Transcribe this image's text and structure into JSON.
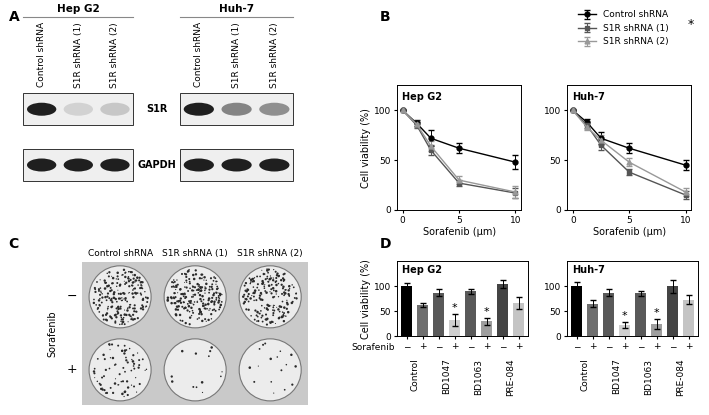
{
  "panel_labels": [
    "A",
    "B",
    "C",
    "D"
  ],
  "panel_A": {
    "rows": [
      "S1R",
      "GAPDH"
    ],
    "cell_lines": [
      {
        "name": "Hep G2",
        "lanes": [
          "Control shRNA",
          "S1R shRNA (1)",
          "S1R shRNA (2)"
        ],
        "bands": {
          "S1R": [
            1.0,
            0.2,
            0.25
          ],
          "GAPDH": [
            1.0,
            1.0,
            1.0
          ]
        }
      },
      {
        "name": "Huh-7",
        "lanes": [
          "Control shRNA",
          "S1R shRNA (1)",
          "S1R shRNA (2)"
        ],
        "bands": {
          "S1R": [
            1.0,
            0.55,
            0.5
          ],
          "GAPDH": [
            1.0,
            1.0,
            1.0
          ]
        }
      }
    ]
  },
  "panel_C": {
    "columns": [
      "Control shRNA",
      "S1R shRNA (1)",
      "S1R shRNA (2)"
    ],
    "row_title": "Sorafenib",
    "rows": [
      "−",
      "+"
    ],
    "colony_density": [
      [
        1.0,
        1.0,
        0.9
      ],
      [
        0.35,
        0.06,
        0.08
      ]
    ]
  },
  "chart_data": [
    {
      "type": "line",
      "title": "Hep G2",
      "x": [
        0,
        1.25,
        2.5,
        5,
        10
      ],
      "xlim": [
        -0.5,
        10.5
      ],
      "xticks": [
        0,
        5,
        10
      ],
      "ylim": [
        0,
        125
      ],
      "yticks": [
        0,
        50,
        100
      ],
      "x_label": "Sorafenib (μm)",
      "y_label": "Cell viability (%)",
      "legend": "upper right",
      "series": [
        {
          "name": "Control shRNA",
          "color": "#000000",
          "marker": "circle",
          "values": [
            100,
            87,
            72,
            62,
            48
          ],
          "errors": [
            0,
            3,
            8,
            5,
            7
          ]
        },
        {
          "name": "S1R shRNA (1)",
          "color": "#555555",
          "marker": "square",
          "values": [
            100,
            85,
            60,
            27,
            17
          ],
          "errors": [
            0,
            3,
            5,
            3,
            5
          ]
        },
        {
          "name": "S1R shRNA (2)",
          "color": "#999999",
          "marker": "triangle",
          "values": [
            100,
            86,
            64,
            30,
            18
          ],
          "errors": [
            0,
            3,
            5,
            4,
            6
          ]
        }
      ]
    },
    {
      "type": "line",
      "title": "Huh-7",
      "x": [
        0,
        1.25,
        2.5,
        5,
        10
      ],
      "xlim": [
        -0.5,
        10.5
      ],
      "xticks": [
        0,
        5,
        10
      ],
      "ylim": [
        0,
        125
      ],
      "yticks": [
        0,
        50,
        100
      ],
      "x_label": "Sorafenib (μm)",
      "annotation": "*",
      "series": [
        {
          "name": "Control shRNA",
          "color": "#000000",
          "marker": "circle",
          "values": [
            100,
            88,
            72,
            62,
            45
          ],
          "errors": [
            0,
            3,
            6,
            5,
            5
          ]
        },
        {
          "name": "S1R shRNA (1)",
          "color": "#555555",
          "marker": "square",
          "values": [
            100,
            85,
            65,
            38,
            15
          ],
          "errors": [
            0,
            3,
            5,
            3,
            4
          ]
        },
        {
          "name": "S1R shRNA (2)",
          "color": "#999999",
          "marker": "triangle",
          "values": [
            100,
            83,
            70,
            48,
            18
          ],
          "errors": [
            0,
            3,
            5,
            4,
            4
          ]
        }
      ]
    },
    {
      "type": "bar",
      "title": "Hep G2",
      "categories": [
        "−",
        "+",
        "−",
        "+",
        "−",
        "+",
        "−",
        "+"
      ],
      "groups": [
        "Control",
        "BD1047",
        "BD1063",
        "PRE-084"
      ],
      "x_label": "Sorafenib",
      "y_label": "Cell viability (%)",
      "values": [
        100,
        63,
        87,
        33,
        90,
        30,
        105,
        66
      ],
      "errors": [
        7,
        4,
        7,
        12,
        5,
        7,
        8,
        12
      ],
      "colors": [
        "#000000",
        "#6e6e6e",
        "#595959",
        "#cfcfcf",
        "#595959",
        "#9e9e9e",
        "#444444",
        "#c4c4c4"
      ],
      "significance": [
        null,
        null,
        null,
        "*",
        null,
        "*",
        null,
        null
      ],
      "ylim": [
        0,
        150
      ],
      "yticks": [
        0,
        50,
        100
      ]
    },
    {
      "type": "bar",
      "title": "Huh-7",
      "categories": [
        "−",
        "+",
        "−",
        "+",
        "−",
        "+",
        "−",
        "+"
      ],
      "groups": [
        "Control",
        "BD1047",
        "BD1063",
        "PRE-084"
      ],
      "values": [
        100,
        65,
        87,
        23,
        86,
        25,
        100,
        73
      ],
      "errors": [
        8,
        7,
        7,
        6,
        5,
        10,
        13,
        9
      ],
      "colors": [
        "#000000",
        "#6e6e6e",
        "#595959",
        "#cfcfcf",
        "#595959",
        "#9e9e9e",
        "#444444",
        "#c4c4c4"
      ],
      "significance": [
        null,
        null,
        null,
        "*",
        null,
        "*",
        null,
        null
      ],
      "ylim": [
        0,
        150
      ],
      "yticks": [
        0,
        50,
        100
      ]
    }
  ]
}
